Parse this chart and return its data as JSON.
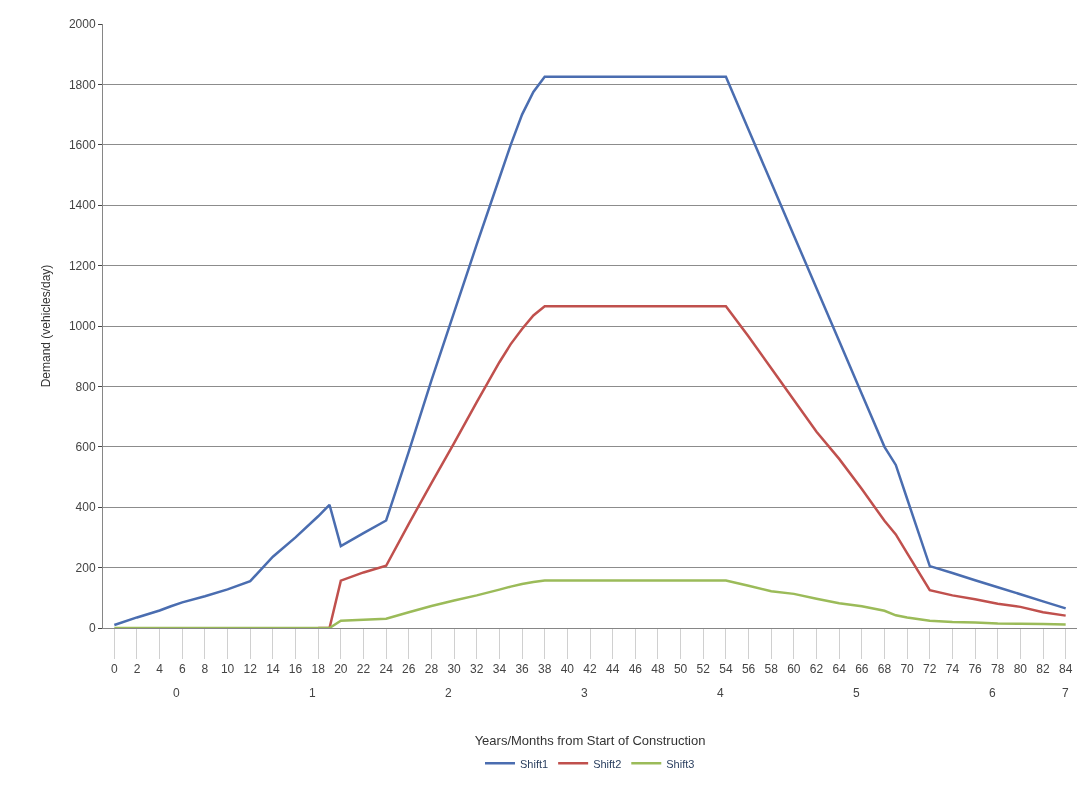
{
  "chart_data": {
    "type": "line",
    "xlabel": "Years/Months from Start of Construction",
    "ylabel": "Demand (vehicles/day)",
    "x": [
      0,
      2,
      4,
      5,
      6,
      8,
      10,
      12,
      14,
      16,
      18,
      19,
      20,
      22,
      24,
      26,
      28,
      30,
      32,
      34,
      35,
      36,
      37,
      38,
      54,
      56,
      58,
      60,
      62,
      64,
      66,
      68,
      69,
      70,
      72,
      74,
      76,
      78,
      80,
      82,
      84
    ],
    "series": [
      {
        "name": "Shift1",
        "color": "#4a6db0",
        "values": [
          10,
          35,
          58,
          72,
          85,
          105,
          128,
          155,
          236,
          300,
          370,
          408,
          271,
          314,
          356,
          584,
          820,
          1045,
          1270,
          1490,
          1600,
          1700,
          1775,
          1825,
          1825,
          1650,
          1475,
          1300,
          1125,
          950,
          775,
          600,
          540,
          428,
          205,
          182,
          158,
          135,
          112,
          88,
          65
        ]
      },
      {
        "name": "Shift2",
        "color": "#c0504d",
        "values": [
          null,
          null,
          null,
          null,
          null,
          null,
          null,
          null,
          null,
          null,
          0,
          0,
          157,
          184,
          206,
          345,
          480,
          612,
          748,
          880,
          940,
          990,
          1035,
          1065,
          1065,
          965,
          860,
          755,
          650,
          560,
          460,
          355,
          310,
          248,
          125,
          108,
          95,
          80,
          70,
          52,
          41
        ]
      },
      {
        "name": "Shift3",
        "color": "#9bbb59",
        "values": [
          0,
          0,
          0,
          0,
          0,
          0,
          0,
          0,
          0,
          0,
          0,
          0,
          24,
          27,
          31,
          52,
          73,
          91,
          108,
          127,
          137,
          146,
          152,
          157,
          157,
          140,
          122,
          113,
          97,
          82,
          72,
          57,
          42,
          35,
          24,
          20,
          18,
          15,
          14,
          13,
          12
        ]
      }
    ],
    "xlim": [
      -1,
      85
    ],
    "xticks": [
      0,
      2,
      4,
      6,
      8,
      10,
      12,
      14,
      16,
      18,
      20,
      22,
      24,
      26,
      28,
      30,
      32,
      34,
      36,
      38,
      40,
      42,
      44,
      46,
      48,
      50,
      52,
      54,
      56,
      58,
      60,
      62,
      64,
      66,
      68,
      70,
      72,
      74,
      76,
      78,
      80,
      82,
      84
    ],
    "ylim": [
      0,
      2000
    ],
    "yticks": [
      0,
      200,
      400,
      600,
      800,
      1000,
      1200,
      1400,
      1600,
      1800,
      2000
    ],
    "grid": "y",
    "legend": "bottom",
    "line_style": "solid",
    "marker": "none",
    "annotations": [
      "0",
      "1",
      "2",
      "3",
      "4",
      "5",
      "6",
      "7"
    ]
  }
}
